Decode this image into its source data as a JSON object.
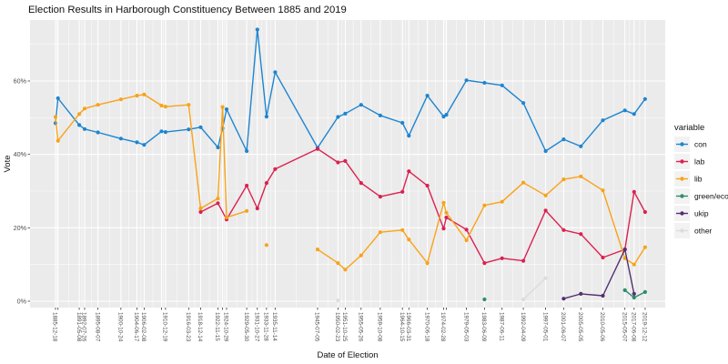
{
  "title": "Election Results in Harborough Constituency Between 1885 and 2019",
  "x_axis": {
    "label": "Date of Election"
  },
  "y_axis": {
    "label": "Vote",
    "tick_labels": [
      "0%",
      "20%",
      "40%",
      "60%"
    ]
  },
  "legend": {
    "title": "variable",
    "entries": [
      "con",
      "lab",
      "lib",
      "green/eco",
      "ukip",
      "other"
    ]
  },
  "colors": {
    "panel_bg": "#EBEBEB",
    "grid": "#FFFFFF",
    "tick_mark": "#333333",
    "tick_text": "#4d4d4d",
    "legend_key_bg": "#F2F2F2"
  },
  "chart_data": {
    "type": "line",
    "title": "Election Results in Harborough Constituency Between 1885 and 2019",
    "xlabel": "Date of Election",
    "ylabel": "Vote",
    "x_unit": "decimal_year_estimated_from_pixels",
    "ylim": [
      0,
      76
    ],
    "y_major_ticks": [
      0,
      20,
      40,
      60
    ],
    "y_minor_ticks": [
      10,
      30,
      50,
      70
    ],
    "grid": true,
    "legend_position": "right",
    "visible_x_ticks": [
      {
        "label": "1885-12-18",
        "x": 1885.96
      },
      {
        "label": "1891-05-08",
        "x": 1891.35
      },
      {
        "label": "1892-07-26",
        "x": 1892.57
      },
      {
        "label": "1895-08-07",
        "x": 1895.6
      },
      {
        "label": "1900-10-24",
        "x": 1900.82
      },
      {
        "label": "1904-06-17",
        "x": 1904.46
      },
      {
        "label": "1906-02-08",
        "x": 1906.11
      },
      {
        "label": "1910-12-19",
        "x": 1910.96
      },
      {
        "label": "1916-03-23",
        "x": 1916.22
      },
      {
        "label": "1918-12-14",
        "x": 1918.95
      },
      {
        "label": "1922-11-15",
        "x": 1922.87
      },
      {
        "label": "1924-10-29",
        "x": 1924.83
      },
      {
        "label": "1929-05-30",
        "x": 1929.41
      },
      {
        "label": "1931-10-27",
        "x": 1931.82
      },
      {
        "label": "1933-11-28",
        "x": 1933.91
      },
      {
        "label": "1935-11-14",
        "x": 1935.87
      },
      {
        "label": "1945-07-05",
        "x": 1945.51
      },
      {
        "label": "1950-02-23",
        "x": 1950.15
      },
      {
        "label": "1951-10-25",
        "x": 1951.81
      },
      {
        "label": "1955-05-26",
        "x": 1955.4
      },
      {
        "label": "1959-10-08",
        "x": 1959.77
      },
      {
        "label": "1964-10-15",
        "x": 1964.79
      },
      {
        "label": "1966-03-31",
        "x": 1966.25
      },
      {
        "label": "1970-06-18",
        "x": 1970.46
      },
      {
        "label": "1974-02-28",
        "x": 1974.16
      },
      {
        "label": "1979-05-03",
        "x": 1979.34
      },
      {
        "label": "1983-06-09",
        "x": 1983.44
      },
      {
        "label": "1987-06-11",
        "x": 1987.44
      },
      {
        "label": "1992-04-09",
        "x": 1992.27
      },
      {
        "label": "1997-05-01",
        "x": 1997.33
      },
      {
        "label": "2001-06-07",
        "x": 2001.43
      },
      {
        "label": "2005-05-05",
        "x": 2005.34
      },
      {
        "label": "2010-05-06",
        "x": 2010.34
      },
      {
        "label": "2015-05-07",
        "x": 2015.35
      },
      {
        "label": "2017-06-08",
        "x": 2017.44
      },
      {
        "label": "2019-12-12",
        "x": 2019.95
      }
    ],
    "overlapped_unlabeled_breaks": [
      1886.52,
      1910.06,
      1923.92,
      1974.78
    ],
    "series": [
      {
        "name": "con",
        "color": "#1E85D0",
        "groups": [
          [
            [
              1885.96,
              48.5
            ],
            [
              1886.52,
              55.3
            ],
            [
              1891.35,
              48.0
            ],
            [
              1892.57,
              46.9
            ],
            [
              1895.6,
              46.0
            ],
            [
              1900.82,
              44.3
            ],
            [
              1904.46,
              43.3
            ],
            [
              1906.11,
              42.6
            ],
            [
              1910.06,
              46.3
            ],
            [
              1910.96,
              46.1
            ],
            [
              1916.22,
              46.8
            ],
            [
              1918.95,
              47.4
            ],
            [
              1922.87,
              41.9
            ],
            [
              1923.92,
              47.1
            ],
            [
              1924.83,
              52.3
            ],
            [
              1929.41,
              40.9
            ],
            [
              1931.82,
              74.0
            ],
            [
              1933.91,
              50.3
            ],
            [
              1935.87,
              62.4
            ],
            [
              1945.51,
              41.8
            ],
            [
              1950.15,
              50.2
            ],
            [
              1951.81,
              51.1
            ],
            [
              1955.4,
              53.5
            ],
            [
              1959.77,
              50.6
            ],
            [
              1964.79,
              48.6
            ],
            [
              1966.25,
              45.1
            ],
            [
              1970.46,
              56.0
            ],
            [
              1974.16,
              50.3
            ],
            [
              1974.78,
              50.8
            ],
            [
              1979.34,
              60.2
            ],
            [
              1983.44,
              59.5
            ],
            [
              1987.44,
              58.8
            ],
            [
              1992.27,
              54.0
            ],
            [
              1997.33,
              40.9
            ],
            [
              2001.43,
              44.1
            ],
            [
              2005.34,
              42.2
            ],
            [
              2010.34,
              49.3
            ],
            [
              2015.35,
              52.0
            ],
            [
              2017.44,
              51.0
            ],
            [
              2019.95,
              55.1
            ]
          ]
        ]
      },
      {
        "name": "lab",
        "color": "#DB2150",
        "groups": [
          [
            [
              1918.95,
              24.3
            ],
            [
              1922.87,
              26.7
            ],
            [
              1924.83,
              22.3
            ],
            [
              1929.41,
              31.5
            ],
            [
              1931.82,
              25.3
            ],
            [
              1933.91,
              32.2
            ],
            [
              1935.87,
              36.0
            ],
            [
              1945.51,
              41.5
            ],
            [
              1950.15,
              37.8
            ],
            [
              1951.81,
              38.2
            ],
            [
              1955.4,
              32.2
            ],
            [
              1959.77,
              28.5
            ],
            [
              1964.79,
              29.8
            ],
            [
              1966.25,
              35.4
            ],
            [
              1970.46,
              31.5
            ],
            [
              1974.16,
              19.8
            ],
            [
              1974.78,
              22.8
            ],
            [
              1979.34,
              19.5
            ],
            [
              1983.44,
              10.4
            ],
            [
              1987.44,
              11.7
            ],
            [
              1992.27,
              11.0
            ],
            [
              1997.33,
              24.7
            ],
            [
              2001.43,
              19.4
            ],
            [
              2005.34,
              18.3
            ],
            [
              2010.34,
              11.9
            ],
            [
              2015.35,
              14.1
            ],
            [
              2017.44,
              29.8
            ],
            [
              2019.95,
              24.3
            ]
          ]
        ]
      },
      {
        "name": "lib",
        "color": "#F8A31A",
        "groups": [
          [
            [
              1885.96,
              50.2
            ],
            [
              1886.52,
              43.7
            ],
            [
              1891.35,
              51.0
            ],
            [
              1892.57,
              52.5
            ],
            [
              1895.6,
              53.5
            ],
            [
              1900.82,
              55.0
            ],
            [
              1904.46,
              56.0
            ],
            [
              1906.11,
              56.3
            ],
            [
              1910.06,
              53.3
            ],
            [
              1910.96,
              53.0
            ],
            [
              1916.22,
              53.5
            ],
            [
              1918.95,
              25.3
            ],
            [
              1922.87,
              28.0
            ],
            [
              1923.92,
              52.9
            ],
            [
              1924.83,
              22.8
            ],
            [
              1929.41,
              24.6
            ]
          ],
          [
            [
              1933.91,
              15.3
            ]
          ],
          [
            [
              1945.51,
              14.1
            ],
            [
              1950.15,
              10.4
            ],
            [
              1951.81,
              8.6
            ],
            [
              1955.4,
              12.5
            ],
            [
              1959.77,
              18.8
            ],
            [
              1964.79,
              19.4
            ],
            [
              1966.25,
              16.8
            ],
            [
              1970.46,
              10.4
            ],
            [
              1974.16,
              26.8
            ],
            [
              1974.78,
              24.1
            ],
            [
              1979.34,
              16.6
            ],
            [
              1983.44,
              26.1
            ],
            [
              1987.44,
              27.1
            ],
            [
              1992.27,
              32.3
            ],
            [
              1997.33,
              28.8
            ],
            [
              2001.43,
              33.2
            ],
            [
              2005.34,
              34.0
            ],
            [
              2010.34,
              30.2
            ],
            [
              2015.35,
              11.7
            ],
            [
              2017.44,
              10.0
            ],
            [
              2019.95,
              14.7
            ]
          ]
        ]
      },
      {
        "name": "green/eco",
        "color": "#2E8B6E",
        "groups": [
          [
            [
              1983.44,
              0.5
            ]
          ],
          [
            [
              2015.35,
              3.0
            ],
            [
              2017.44,
              1.0
            ],
            [
              2019.95,
              2.5
            ]
          ]
        ]
      },
      {
        "name": "ukip",
        "color": "#54306E",
        "groups": [
          [
            [
              2001.43,
              0.7
            ],
            [
              2005.34,
              2.0
            ],
            [
              2010.34,
              1.5
            ],
            [
              2015.35,
              14.1
            ],
            [
              2017.44,
              2.0
            ]
          ]
        ]
      },
      {
        "name": "other",
        "color": "#DCDCDC",
        "groups": [
          [
            [
              1950.15,
              0.2
            ]
          ],
          [
            [
              1992.27,
              0.5
            ],
            [
              1997.33,
              6.3
            ]
          ]
        ]
      }
    ]
  }
}
